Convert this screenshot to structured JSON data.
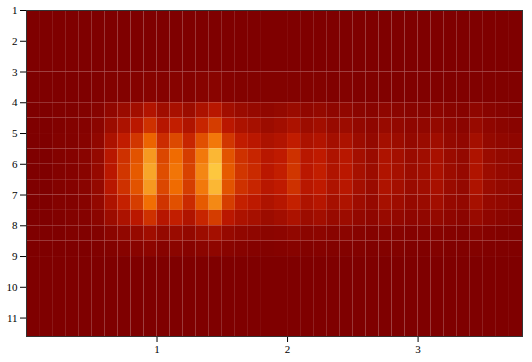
{
  "chart_data": {
    "type": "heatmap",
    "x_edges": [
      0,
      0.1,
      0.2,
      0.3,
      0.4,
      0.5,
      0.6,
      0.7,
      0.8,
      0.9,
      1,
      1.1,
      1.2,
      1.3,
      1.4,
      1.5,
      1.6,
      1.7,
      1.8,
      1.9,
      2,
      2.1,
      2.2,
      2.3,
      2.4,
      2.5,
      2.6,
      2.7,
      2.8,
      2.9,
      3,
      3.1,
      3.2,
      3.3,
      3.4,
      3.5,
      3.6,
      3.7,
      3.8
    ],
    "y_edges": [
      1,
      3,
      4,
      4.5,
      5,
      5.5,
      6,
      6.5,
      7,
      7.5,
      8,
      8.5,
      9,
      11.6
    ],
    "cells": [
      [
        0,
        0,
        0,
        0,
        0,
        0,
        0,
        0,
        0,
        0,
        0,
        0,
        0,
        0,
        0,
        0,
        0,
        0,
        0,
        0,
        0,
        0,
        0,
        0,
        0,
        0,
        0,
        0,
        0,
        0,
        0,
        0,
        0,
        0,
        0,
        0,
        0,
        0
      ],
      [
        0,
        0,
        0,
        0,
        0,
        0.01,
        0.02,
        0.02,
        0.03,
        0.04,
        0.03,
        0.04,
        0.03,
        0.04,
        0.05,
        0.03,
        0.02,
        0.02,
        0.02,
        0.02,
        0.02,
        0.02,
        0.02,
        0.01,
        0.02,
        0.01,
        0.01,
        0.01,
        0.01,
        0.01,
        0.01,
        0.01,
        0.01,
        0.01,
        0.01,
        0.01,
        0.01,
        0.01
      ],
      [
        0,
        0,
        0.01,
        0.01,
        0.02,
        0.04,
        0.09,
        0.14,
        0.18,
        0.26,
        0.17,
        0.21,
        0.15,
        0.23,
        0.29,
        0.18,
        0.14,
        0.12,
        0.09,
        0.11,
        0.14,
        0.09,
        0.11,
        0.08,
        0.09,
        0.06,
        0.05,
        0.08,
        0.06,
        0.05,
        0.05,
        0.07,
        0.05,
        0.04,
        0.08,
        0.05,
        0.04,
        0.03
      ],
      [
        0,
        0,
        0.01,
        0.02,
        0.03,
        0.06,
        0.15,
        0.23,
        0.3,
        0.43,
        0.28,
        0.35,
        0.25,
        0.38,
        0.48,
        0.3,
        0.23,
        0.2,
        0.15,
        0.18,
        0.23,
        0.15,
        0.18,
        0.13,
        0.15,
        0.1,
        0.08,
        0.13,
        0.1,
        0.08,
        0.09,
        0.11,
        0.08,
        0.06,
        0.13,
        0.08,
        0.06,
        0.05
      ],
      [
        0,
        0,
        0.02,
        0.02,
        0.04,
        0.09,
        0.23,
        0.34,
        0.45,
        0.64,
        0.41,
        0.53,
        0.38,
        0.56,
        0.71,
        0.45,
        0.34,
        0.3,
        0.23,
        0.26,
        0.34,
        0.23,
        0.26,
        0.19,
        0.23,
        0.15,
        0.11,
        0.19,
        0.15,
        0.11,
        0.14,
        0.17,
        0.11,
        0.09,
        0.19,
        0.11,
        0.09,
        0.08
      ],
      [
        0,
        0,
        0.02,
        0.03,
        0.05,
        0.11,
        0.29,
        0.43,
        0.57,
        0.81,
        0.52,
        0.67,
        0.48,
        0.71,
        0.9,
        0.57,
        0.43,
        0.38,
        0.29,
        0.33,
        0.43,
        0.29,
        0.33,
        0.24,
        0.29,
        0.19,
        0.14,
        0.24,
        0.19,
        0.14,
        0.17,
        0.21,
        0.14,
        0.11,
        0.24,
        0.14,
        0.11,
        0.1
      ],
      [
        0,
        0,
        0.02,
        0.03,
        0.05,
        0.12,
        0.3,
        0.45,
        0.6,
        0.85,
        0.55,
        0.7,
        0.5,
        0.75,
        0.95,
        0.6,
        0.45,
        0.4,
        0.3,
        0.35,
        0.45,
        0.3,
        0.35,
        0.25,
        0.3,
        0.2,
        0.15,
        0.25,
        0.2,
        0.15,
        0.18,
        0.22,
        0.15,
        0.12,
        0.25,
        0.15,
        0.12,
        0.1
      ],
      [
        0,
        0,
        0.02,
        0.03,
        0.05,
        0.11,
        0.29,
        0.43,
        0.57,
        0.81,
        0.52,
        0.67,
        0.48,
        0.71,
        0.9,
        0.57,
        0.43,
        0.38,
        0.29,
        0.33,
        0.43,
        0.29,
        0.33,
        0.24,
        0.29,
        0.19,
        0.14,
        0.24,
        0.19,
        0.14,
        0.17,
        0.21,
        0.14,
        0.11,
        0.24,
        0.14,
        0.11,
        0.1
      ],
      [
        0,
        0,
        0.02,
        0.02,
        0.04,
        0.1,
        0.24,
        0.36,
        0.48,
        0.68,
        0.44,
        0.56,
        0.4,
        0.6,
        0.76,
        0.48,
        0.36,
        0.32,
        0.24,
        0.28,
        0.36,
        0.24,
        0.28,
        0.2,
        0.24,
        0.16,
        0.12,
        0.2,
        0.16,
        0.12,
        0.14,
        0.18,
        0.12,
        0.1,
        0.2,
        0.12,
        0.1,
        0.08
      ],
      [
        0,
        0,
        0.01,
        0.02,
        0.03,
        0.06,
        0.15,
        0.23,
        0.3,
        0.43,
        0.28,
        0.35,
        0.25,
        0.38,
        0.48,
        0.3,
        0.23,
        0.2,
        0.15,
        0.18,
        0.23,
        0.15,
        0.18,
        0.13,
        0.15,
        0.1,
        0.08,
        0.13,
        0.1,
        0.08,
        0.09,
        0.11,
        0.08,
        0.06,
        0.13,
        0.08,
        0.06,
        0.05
      ],
      [
        0,
        0,
        0,
        0.01,
        0.01,
        0.02,
        0.06,
        0.09,
        0.12,
        0.17,
        0.11,
        0.14,
        0.1,
        0.15,
        0.19,
        0.12,
        0.09,
        0.08,
        0.06,
        0.07,
        0.09,
        0.06,
        0.07,
        0.05,
        0.06,
        0.04,
        0.03,
        0.05,
        0.04,
        0.03,
        0.04,
        0.04,
        0.03,
        0.02,
        0.05,
        0.03,
        0.02,
        0.02
      ],
      [
        0,
        0,
        0,
        0,
        0,
        0.01,
        0.02,
        0.04,
        0.05,
        0.07,
        0.04,
        0.06,
        0.04,
        0.06,
        0.08,
        0.05,
        0.04,
        0.03,
        0.02,
        0.03,
        0.04,
        0.02,
        0.03,
        0.02,
        0.02,
        0.02,
        0.01,
        0.02,
        0.02,
        0.01,
        0.01,
        0.02,
        0.01,
        0.01,
        0.02,
        0.01,
        0.01,
        0.01
      ],
      [
        0,
        0,
        0,
        0,
        0,
        0,
        0,
        0,
        0,
        0,
        0,
        0,
        0,
        0,
        0,
        0,
        0,
        0,
        0,
        0,
        0,
        0,
        0,
        0,
        0,
        0,
        0,
        0,
        0,
        0,
        0,
        0,
        0,
        0,
        0,
        0,
        0,
        0
      ]
    ],
    "zlim": [
      0,
      1
    ],
    "xlim": [
      0,
      3.8
    ],
    "ylim": [
      1,
      11.6
    ],
    "xticks": [
      1,
      2,
      3
    ],
    "yticks": [
      1,
      2,
      3,
      4,
      5,
      6,
      7,
      8,
      9,
      10,
      11
    ],
    "grid": false
  }
}
